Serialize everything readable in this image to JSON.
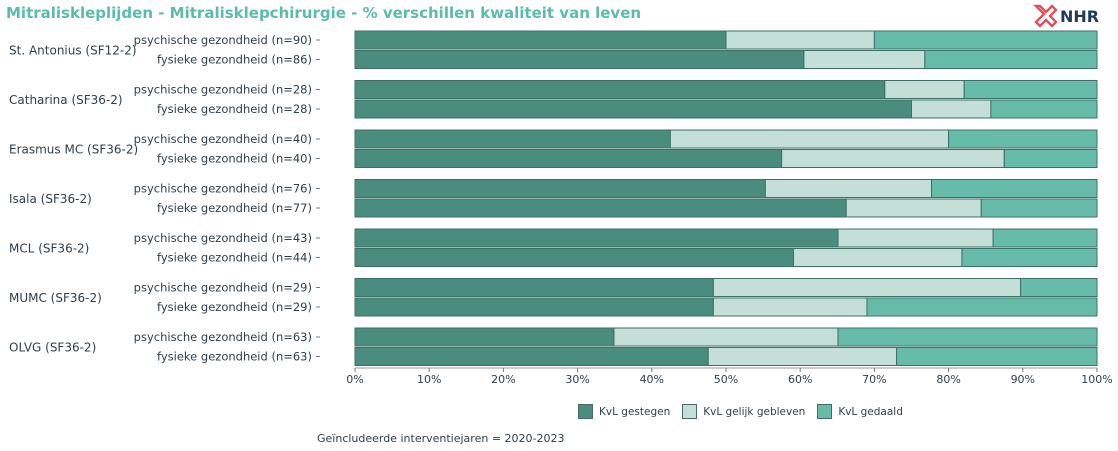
{
  "title": "Mitraliskleplijden - Mitralisklepchirurgie - % verschillen kwaliteit van leven",
  "logo_text": "NHR",
  "footnote": "Geïncludeerde interventiejaren = 2020-2023",
  "colors": {
    "gestegen": "#4a8c7e",
    "gelijk": "#c3dfd7",
    "gedaald": "#66bca8",
    "bar_stroke": "#3d6f66",
    "title": "#5bbcaa"
  },
  "chart_data": {
    "type": "bar",
    "orientation": "horizontal",
    "stacked": true,
    "xlim": [
      0,
      100
    ],
    "x_ticks": [
      "0%",
      "10%",
      "20%",
      "30%",
      "40%",
      "50%",
      "60%",
      "70%",
      "80%",
      "90%",
      "100%"
    ],
    "legend": [
      "KvL gestegen",
      "KvL gelijk gebleven",
      "KvL gedaald"
    ],
    "legend_position": "bottom",
    "groups": [
      {
        "name": "St. Antonius (SF12-2)",
        "rows": [
          {
            "label": "psychische gezondheid (n=90)",
            "values": [
              50.0,
              20.0,
              30.0
            ]
          },
          {
            "label": "fysieke gezondheid (n=86)",
            "values": [
              60.5,
              16.3,
              23.2
            ]
          }
        ]
      },
      {
        "name": "Catharina (SF36-2)",
        "rows": [
          {
            "label": "psychische gezondheid (n=28)",
            "values": [
              71.4,
              10.7,
              17.9
            ]
          },
          {
            "label": "fysieke gezondheid (n=28)",
            "values": [
              75.0,
              10.7,
              14.3
            ]
          }
        ]
      },
      {
        "name": "Erasmus MC (SF36-2)",
        "rows": [
          {
            "label": "psychische gezondheid (n=40)",
            "values": [
              42.5,
              37.5,
              20.0
            ]
          },
          {
            "label": "fysieke gezondheid (n=40)",
            "values": [
              57.5,
              30.0,
              12.5
            ]
          }
        ]
      },
      {
        "name": "Isala (SF36-2)",
        "rows": [
          {
            "label": "psychische gezondheid (n=76)",
            "values": [
              55.3,
              22.4,
              22.3
            ]
          },
          {
            "label": "fysieke gezondheid (n=77)",
            "values": [
              66.2,
              18.2,
              15.6
            ]
          }
        ]
      },
      {
        "name": "MCL (SF36-2)",
        "rows": [
          {
            "label": "psychische gezondheid (n=43)",
            "values": [
              65.1,
              20.9,
              14.0
            ]
          },
          {
            "label": "fysieke gezondheid (n=44)",
            "values": [
              59.1,
              22.7,
              18.2
            ]
          }
        ]
      },
      {
        "name": "MUMC (SF36-2)",
        "rows": [
          {
            "label": "psychische gezondheid (n=29)",
            "values": [
              48.3,
              41.4,
              10.3
            ]
          },
          {
            "label": "fysieke gezondheid (n=29)",
            "values": [
              48.3,
              20.7,
              31.0
            ]
          }
        ]
      },
      {
        "name": "OLVG (SF36-2)",
        "rows": [
          {
            "label": "psychische gezondheid (n=63)",
            "values": [
              34.9,
              30.2,
              34.9
            ]
          },
          {
            "label": "fysieke gezondheid (n=63)",
            "values": [
              47.6,
              25.4,
              27.0
            ]
          }
        ]
      }
    ]
  }
}
